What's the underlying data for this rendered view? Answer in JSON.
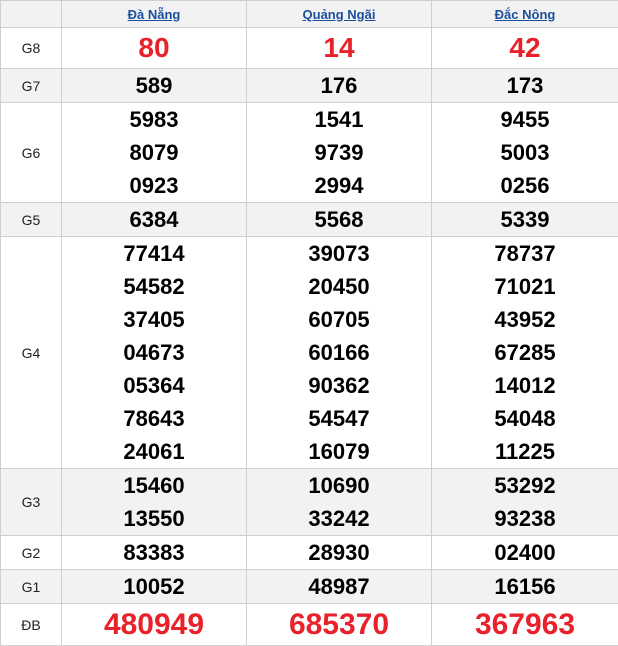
{
  "provinces": [
    "Đà Nẵng",
    "Quảng Ngãi",
    "Đắc Nông"
  ],
  "colors": {
    "highlight": "#e8212b",
    "link": "#1a4f9c",
    "alt_row": "#f2f2f2"
  },
  "prizes": [
    {
      "label": "G8",
      "values": [
        [
          "80"
        ],
        [
          "14"
        ],
        [
          "42"
        ]
      ]
    },
    {
      "label": "G7",
      "values": [
        [
          "589"
        ],
        [
          "176"
        ],
        [
          "173"
        ]
      ]
    },
    {
      "label": "G6",
      "values": [
        [
          "5983",
          "8079",
          "0923"
        ],
        [
          "1541",
          "9739",
          "2994"
        ],
        [
          "9455",
          "5003",
          "0256"
        ]
      ]
    },
    {
      "label": "G5",
      "values": [
        [
          "6384"
        ],
        [
          "5568"
        ],
        [
          "5339"
        ]
      ]
    },
    {
      "label": "G4",
      "values": [
        [
          "77414",
          "54582",
          "37405",
          "04673",
          "05364",
          "78643",
          "24061"
        ],
        [
          "39073",
          "20450",
          "60705",
          "60166",
          "90362",
          "54547",
          "16079"
        ],
        [
          "78737",
          "71021",
          "43952",
          "67285",
          "14012",
          "54048",
          "11225"
        ]
      ]
    },
    {
      "label": "G3",
      "values": [
        [
          "15460",
          "13550"
        ],
        [
          "10690",
          "33242"
        ],
        [
          "53292",
          "93238"
        ]
      ]
    },
    {
      "label": "G2",
      "values": [
        [
          "83383"
        ],
        [
          "28930"
        ],
        [
          "02400"
        ]
      ]
    },
    {
      "label": "G1",
      "values": [
        [
          "10052"
        ],
        [
          "48987"
        ],
        [
          "16156"
        ]
      ]
    },
    {
      "label": "ĐB",
      "values": [
        [
          "480949"
        ],
        [
          "685370"
        ],
        [
          "367963"
        ]
      ]
    }
  ]
}
